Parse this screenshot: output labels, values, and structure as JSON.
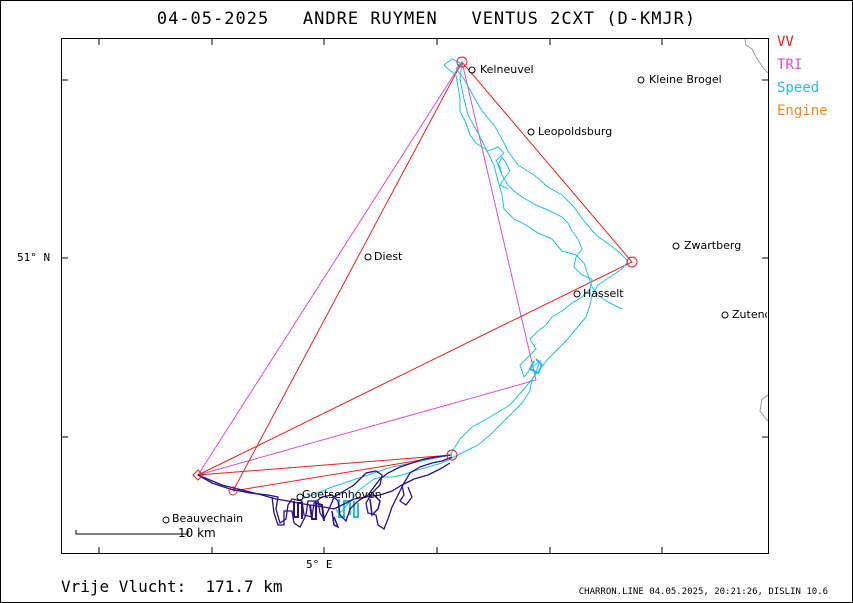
{
  "header": {
    "date": "04-05-2025",
    "pilot": "ANDRE RUYMEN",
    "glider": "VENTUS 2CXT (D-KMJR)"
  },
  "legend": {
    "vv": "VV",
    "tri": "TRI",
    "speed": "Speed",
    "engine": "Engine"
  },
  "colors": {
    "vv": "#e8201e",
    "tri": "#e04ad8",
    "speed": "#1ec0e8",
    "engine": "#f08a1c",
    "low_speed": "#2a108a",
    "border": "#9a9a9a"
  },
  "axes": {
    "lat_label": "51° N",
    "lon_label": "5° E"
  },
  "towns": [
    {
      "name": "Kelneuvel"
    },
    {
      "name": "Kleine Brogel"
    },
    {
      "name": "Leopoldsburg"
    },
    {
      "name": "Zwartberg"
    },
    {
      "name": "Diest"
    },
    {
      "name": "Hasselt"
    },
    {
      "name": "Zutend"
    },
    {
      "name": "Goetsenhoven"
    },
    {
      "name": "Beauvechain"
    }
  ],
  "scale": {
    "label": "10 km"
  },
  "footer": {
    "distance": "Vrije Vlucht:  171.7 km",
    "info": "CHARRON.LINE 04.05.2025, 20:21:26, DISLIN 10.6"
  }
}
